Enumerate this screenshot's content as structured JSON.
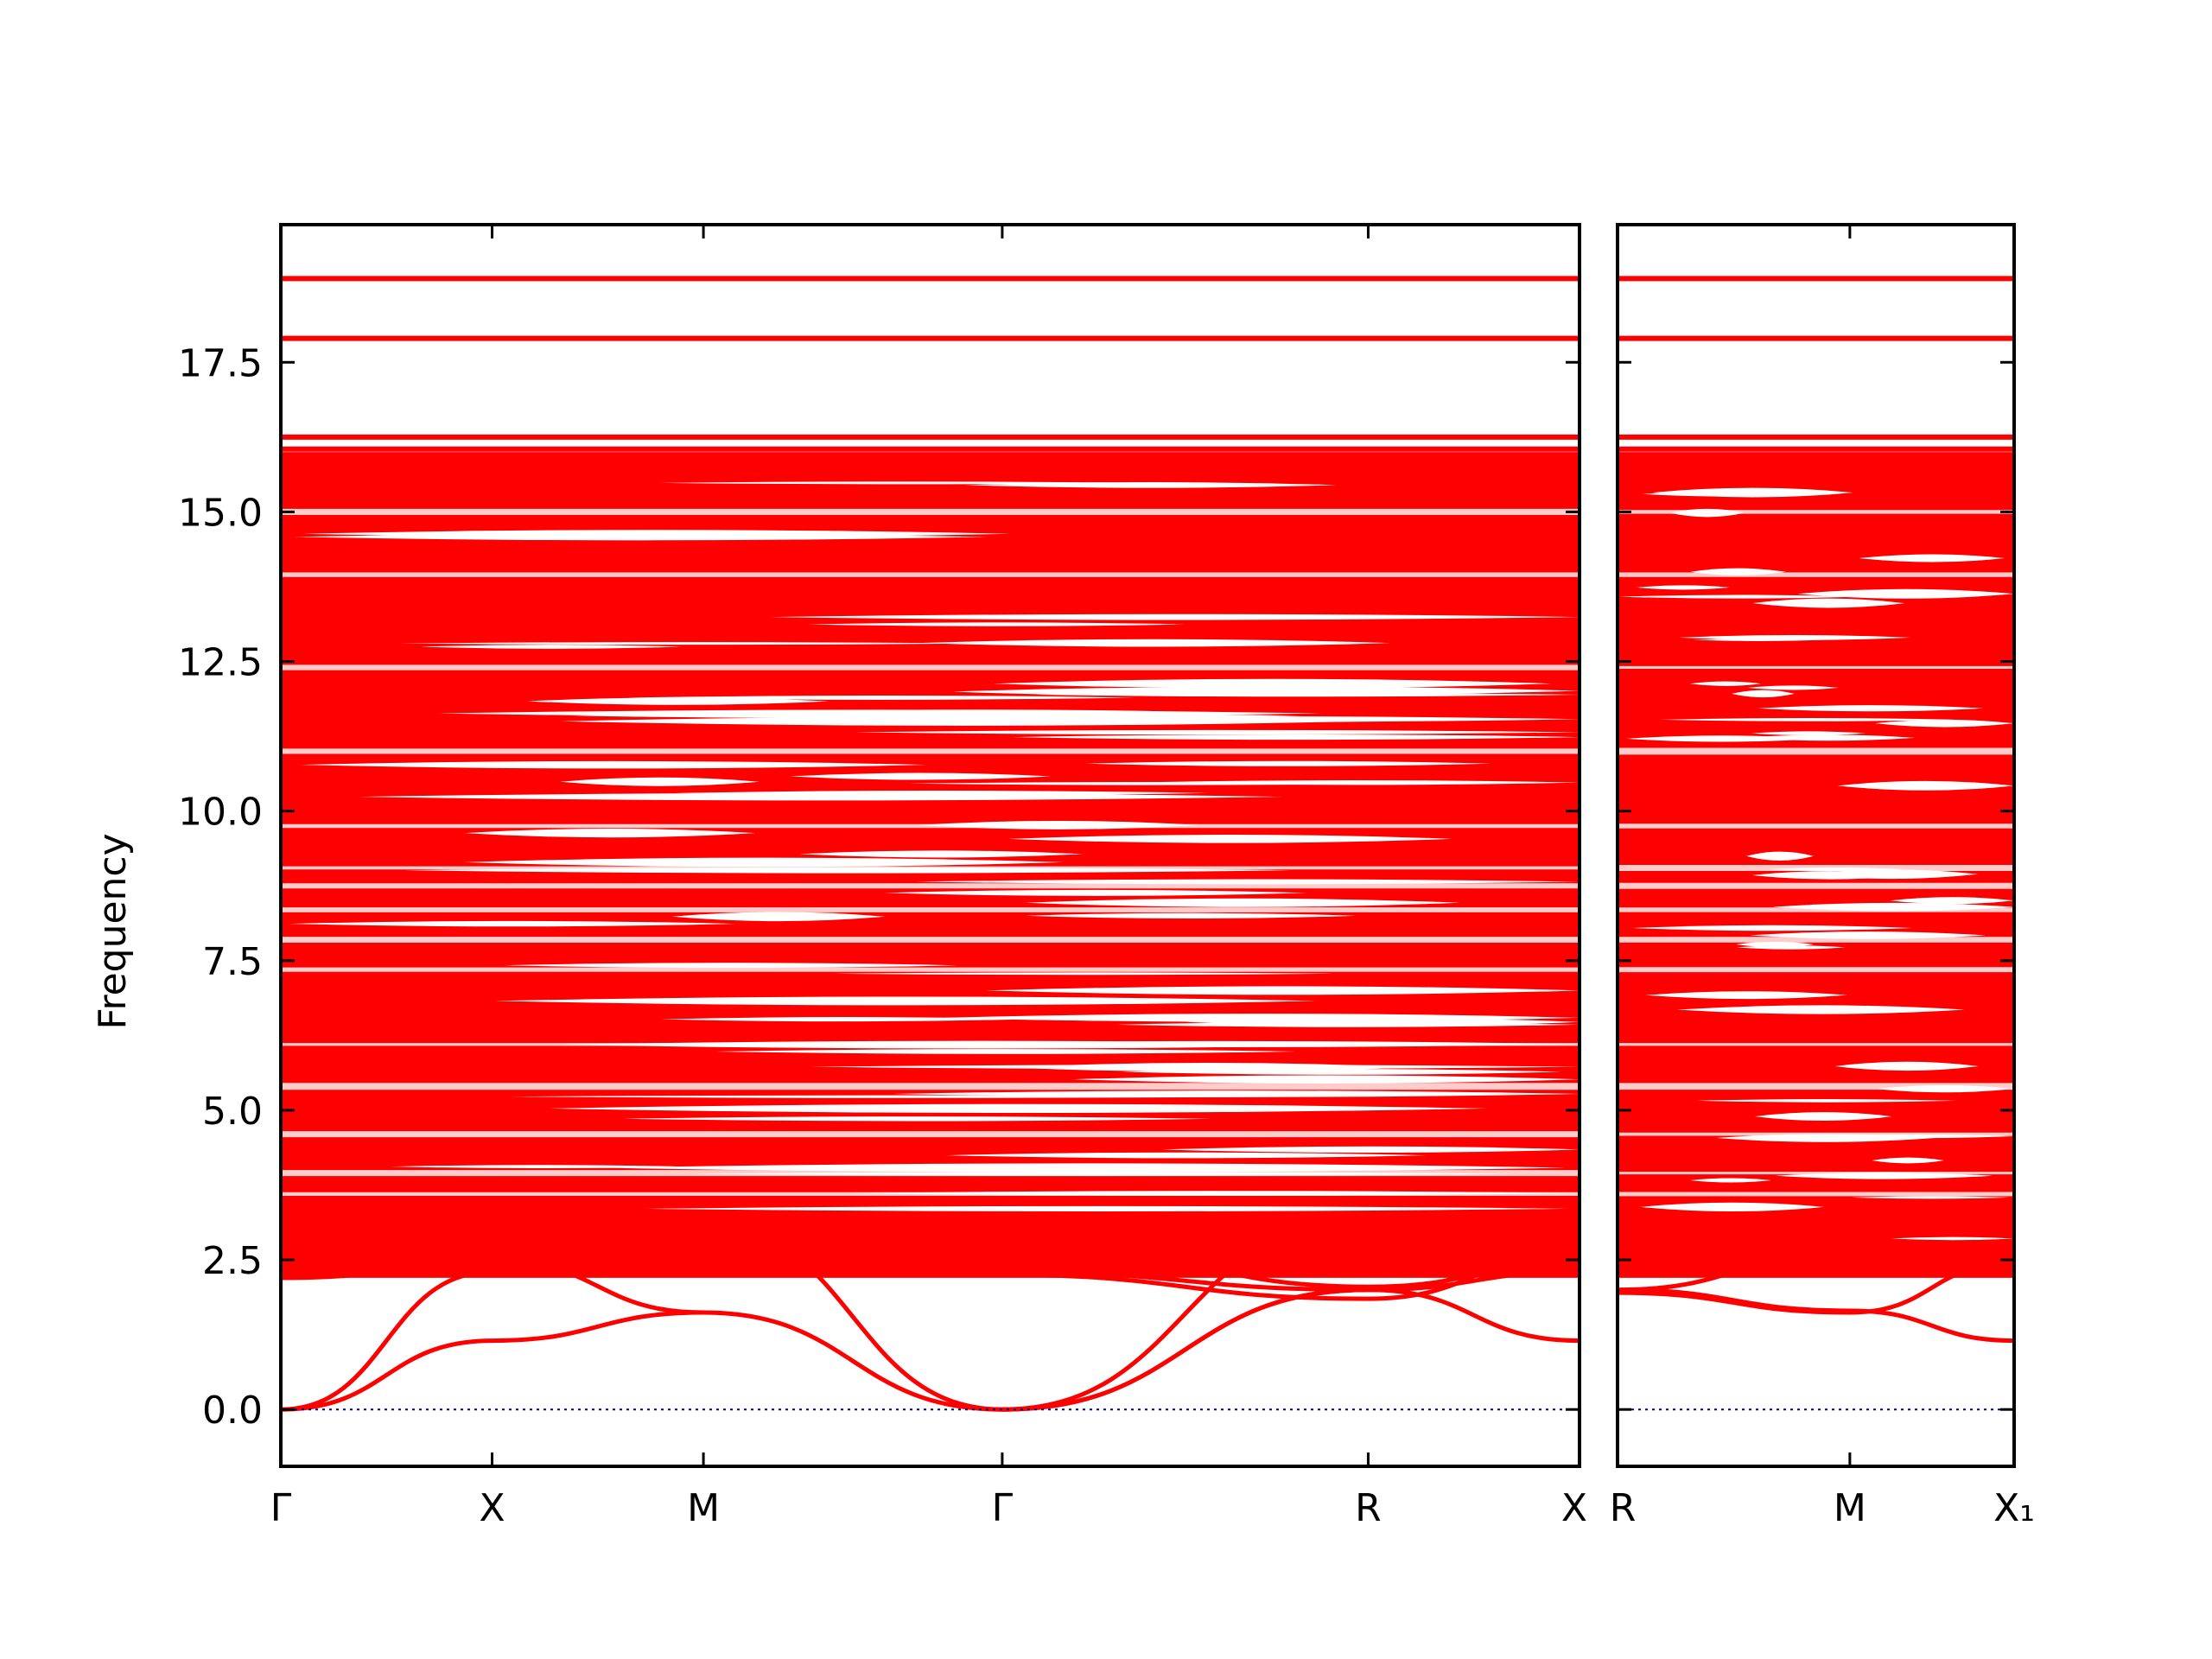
{
  "chart_data": {
    "type": "line",
    "ylabel": "Frequency",
    "ylim": [
      -0.95,
      19.8
    ],
    "y_ticks": [
      "0.0",
      "2.5",
      "5.0",
      "7.5",
      "10.0",
      "12.5",
      "15.0",
      "17.5"
    ],
    "y_tick_values": [
      0,
      2.5,
      5,
      7.5,
      10,
      12.5,
      15,
      17.5
    ],
    "colors": {
      "bands": "#ff0000",
      "zero_line": "#000080",
      "frame": "#000000"
    },
    "panels": [
      {
        "x_labels": [
          "Γ",
          "X",
          "M",
          "Γ",
          "R",
          "X"
        ],
        "x_positions": [
          0,
          0.5,
          1.0,
          1.7071,
          2.5731,
          3.0731
        ]
      },
      {
        "x_labels": [
          "R",
          "M",
          "X₁"
        ],
        "x_positions": [
          0,
          0.7071,
          1.2071
        ]
      }
    ],
    "flat_bands": [
      {
        "name": "",
        "y": 18.9
      },
      {
        "name": "",
        "y": 17.9
      },
      {
        "name": "",
        "y": 16.25
      },
      {
        "name": "",
        "y": 16.05
      }
    ],
    "dense_region": {
      "ymin": 2.2,
      "ymax": 16.0
    },
    "acoustic_branches": {
      "panel1": [
        {
          "x": [
            0,
            0.5,
            1.0
          ],
          "y": [
            0,
            1.15,
            1.62
          ]
        },
        {
          "x": [
            0,
            0.5,
            1.0
          ],
          "y": [
            0,
            2.3,
            2.65
          ]
        },
        {
          "x": [
            0,
            0.5,
            1.0,
            1.7071
          ],
          "y": [
            2.2,
            2.5,
            1.62,
            0
          ]
        },
        {
          "x": [
            1.0,
            1.7071
          ],
          "y": [
            3.1,
            0
          ]
        },
        {
          "x": [
            1.7071,
            2.5731
          ],
          "y": [
            0,
            2.0
          ]
        },
        {
          "x": [
            1.7071,
            2.5731
          ],
          "y": [
            0,
            3.2
          ]
        },
        {
          "x": [
            1.7071,
            2.5731,
            3.0731
          ],
          "y": [
            0,
            2.0,
            2.3
          ]
        },
        {
          "x": [
            1.7071,
            2.5731,
            3.0731
          ],
          "y": [
            2.3,
            2.0,
            2.6
          ]
        },
        {
          "x": [
            2.5731,
            3.0731
          ],
          "y": [
            2.0,
            1.15
          ]
        },
        {
          "x": [
            0,
            0.5,
            1.0,
            1.7071,
            2.5731,
            3.0731
          ],
          "y": [
            2.2,
            2.4,
            2.6,
            2.9,
            2.05,
            2.45
          ]
        },
        {
          "x": [
            0,
            1.0,
            1.7071,
            2.5731,
            3.0731
          ],
          "y": [
            2.3,
            2.7,
            2.25,
            1.85,
            2.6
          ]
        }
      ],
      "panel2": [
        {
          "x": [
            0,
            0.7071,
            1.2071
          ],
          "y": [
            2.0,
            1.65,
            1.15
          ]
        },
        {
          "x": [
            0,
            0.7071,
            1.2071
          ],
          "y": [
            2.0,
            2.6,
            2.3
          ]
        },
        {
          "x": [
            0,
            0.7071,
            1.2071
          ],
          "y": [
            1.95,
            1.62,
            2.45
          ]
        },
        {
          "x": [
            0,
            0.7071,
            1.2071
          ],
          "y": [
            3.2,
            2.85,
            2.6
          ]
        }
      ]
    }
  }
}
